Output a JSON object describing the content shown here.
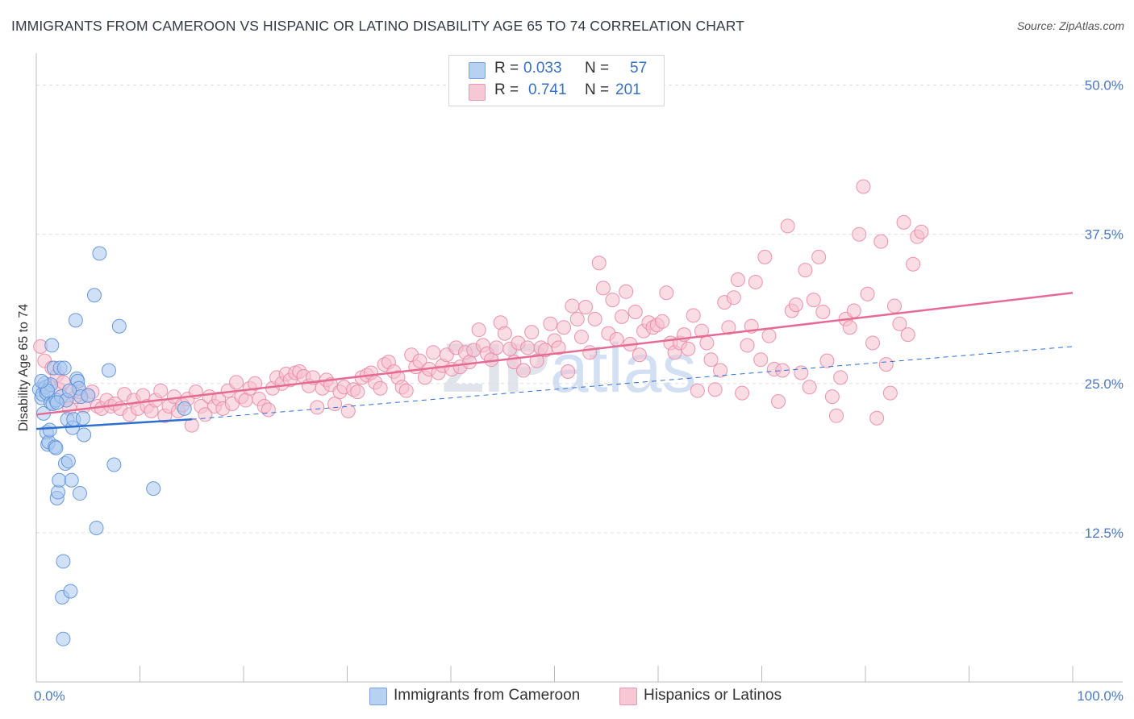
{
  "title": "IMMIGRANTS FROM CAMEROON VS HISPANIC OR LATINO DISABILITY AGE 65 TO 74 CORRELATION CHART",
  "source": "Source: ZipAtlas.com",
  "watermark": {
    "zip": "ZIP",
    "atlas": "atlas"
  },
  "legend": {
    "series1": {
      "r_label": "R =",
      "r_value": "0.033",
      "n_label": "N =",
      "n_value": "57"
    },
    "series2": {
      "r_label": "R =",
      "r_value": "0.741",
      "n_label": "N =",
      "n_value": "201"
    }
  },
  "bottom_legend": {
    "series1": "Immigrants from Cameroon",
    "series2": "Hispanics or Latinos"
  },
  "colors": {
    "series1_fill": "#a9c8f0",
    "series1_stroke": "#5b8fd6",
    "series1_line": "#2f6fd0",
    "series2_fill": "#f6c0d0",
    "series2_stroke": "#e88aa6",
    "series2_line": "#e56b93",
    "tick_label": "#4a78c4",
    "grid": "#dddddd"
  },
  "chart_data": {
    "type": "scatter",
    "title": "IMMIGRANTS FROM CAMEROON VS HISPANIC OR LATINO DISABILITY AGE 65 TO 74 CORRELATION CHART",
    "xlabel": "",
    "ylabel": "Disability Age 65 to 74",
    "xlim": [
      0,
      100
    ],
    "ylim": [
      0,
      52
    ],
    "x_tick_labels": [
      "0.0%",
      "100.0%"
    ],
    "y_ticks": [
      12.5,
      25.0,
      37.5,
      50.0
    ],
    "y_tick_labels": [
      "12.5%",
      "25.0%",
      "37.5%",
      "50.0%"
    ],
    "grid": true,
    "series": [
      {
        "name": "Immigrants from Cameroon",
        "R": 0.033,
        "N": 57,
        "trend_solid": {
          "x": [
            0,
            15
          ],
          "y": [
            21.2,
            22.0
          ]
        },
        "trend_dashed": {
          "x": [
            15,
            100
          ],
          "y": [
            22.0,
            28.1
          ]
        },
        "points": [
          [
            0.3,
            24.5
          ],
          [
            0.5,
            23.8
          ],
          [
            0.6,
            24.1
          ],
          [
            0.7,
            22.5
          ],
          [
            0.8,
            25.0
          ],
          [
            0.9,
            24.7
          ],
          [
            1.0,
            20.9
          ],
          [
            1.0,
            24.2
          ],
          [
            1.1,
            19.9
          ],
          [
            1.2,
            20.1
          ],
          [
            1.3,
            21.1
          ],
          [
            1.4,
            23.4
          ],
          [
            1.4,
            24.9
          ],
          [
            1.5,
            28.2
          ],
          [
            1.6,
            23.3
          ],
          [
            1.7,
            26.3
          ],
          [
            1.8,
            19.7
          ],
          [
            1.9,
            19.6
          ],
          [
            1.9,
            23.6
          ],
          [
            2.0,
            15.4
          ],
          [
            2.1,
            15.9
          ],
          [
            2.2,
            16.9
          ],
          [
            2.3,
            26.3
          ],
          [
            2.4,
            23.9
          ],
          [
            2.5,
            7.1
          ],
          [
            2.6,
            3.6
          ],
          [
            2.6,
            10.1
          ],
          [
            2.7,
            26.3
          ],
          [
            2.8,
            18.3
          ],
          [
            2.9,
            23.6
          ],
          [
            3.0,
            22.0
          ],
          [
            3.1,
            18.5
          ],
          [
            3.3,
            7.6
          ],
          [
            3.4,
            16.9
          ],
          [
            3.5,
            21.3
          ],
          [
            3.6,
            22.0
          ],
          [
            3.8,
            30.3
          ],
          [
            3.9,
            25.4
          ],
          [
            4.0,
            25.2
          ],
          [
            4.1,
            24.6
          ],
          [
            4.2,
            15.8
          ],
          [
            4.3,
            23.9
          ],
          [
            4.5,
            22.1
          ],
          [
            4.6,
            20.7
          ],
          [
            5.0,
            24.0
          ],
          [
            5.6,
            32.4
          ],
          [
            5.8,
            12.9
          ],
          [
            6.1,
            35.9
          ],
          [
            7.0,
            26.1
          ],
          [
            7.5,
            18.2
          ],
          [
            8.0,
            29.8
          ],
          [
            11.3,
            16.2
          ],
          [
            14.3,
            22.9
          ],
          [
            2.0,
            23.4
          ],
          [
            1.1,
            24.4
          ],
          [
            0.5,
            25.2
          ],
          [
            3.2,
            24.4
          ]
        ]
      },
      {
        "name": "Hispanics or Latinos",
        "R": 0.741,
        "N": 201,
        "trend": {
          "x": [
            0,
            100
          ],
          "y": [
            22.4,
            32.6
          ]
        },
        "points": [
          [
            0.4,
            28.1
          ],
          [
            0.8,
            26.9
          ],
          [
            1.2,
            24.8
          ],
          [
            1.5,
            26.3
          ],
          [
            2.0,
            25.7
          ],
          [
            2.2,
            24.5
          ],
          [
            2.6,
            25.1
          ],
          [
            2.9,
            23.6
          ],
          [
            3.2,
            22.9
          ],
          [
            3.5,
            24.3
          ],
          [
            3.8,
            23.9
          ],
          [
            4.2,
            24.3
          ],
          [
            4.6,
            23.1
          ],
          [
            5.0,
            24.0
          ],
          [
            5.4,
            24.3
          ],
          [
            5.9,
            23.1
          ],
          [
            6.3,
            22.9
          ],
          [
            6.8,
            23.6
          ],
          [
            7.2,
            23.1
          ],
          [
            7.6,
            23.3
          ],
          [
            8.1,
            22.9
          ],
          [
            8.5,
            24.1
          ],
          [
            9.0,
            22.4
          ],
          [
            9.4,
            23.6
          ],
          [
            9.8,
            22.9
          ],
          [
            10.3,
            24.0
          ],
          [
            10.7,
            23.1
          ],
          [
            11.1,
            22.7
          ],
          [
            11.5,
            23.6
          ],
          [
            12.0,
            24.4
          ],
          [
            12.4,
            22.3
          ],
          [
            12.8,
            23.1
          ],
          [
            13.3,
            23.9
          ],
          [
            13.7,
            22.7
          ],
          [
            14.1,
            23.2
          ],
          [
            14.6,
            23.7
          ],
          [
            15.0,
            21.5
          ],
          [
            15.4,
            24.3
          ],
          [
            15.9,
            23.1
          ],
          [
            16.3,
            22.4
          ],
          [
            16.7,
            23.9
          ],
          [
            17.2,
            23.1
          ],
          [
            17.6,
            23.7
          ],
          [
            18.0,
            22.9
          ],
          [
            18.5,
            24.4
          ],
          [
            18.9,
            23.3
          ],
          [
            19.3,
            25.1
          ],
          [
            19.8,
            23.9
          ],
          [
            20.2,
            23.6
          ],
          [
            20.6,
            24.6
          ],
          [
            21.1,
            25.0
          ],
          [
            21.5,
            23.7
          ],
          [
            22.0,
            23.1
          ],
          [
            22.4,
            22.8
          ],
          [
            22.8,
            24.6
          ],
          [
            23.2,
            25.5
          ],
          [
            23.7,
            25.0
          ],
          [
            24.1,
            25.8
          ],
          [
            24.5,
            25.3
          ],
          [
            25.0,
            25.9
          ],
          [
            25.4,
            26.0
          ],
          [
            25.8,
            25.6
          ],
          [
            26.3,
            24.8
          ],
          [
            26.7,
            25.5
          ],
          [
            27.1,
            23.0
          ],
          [
            27.6,
            24.6
          ],
          [
            28.0,
            25.3
          ],
          [
            28.4,
            24.9
          ],
          [
            28.8,
            23.3
          ],
          [
            29.3,
            24.3
          ],
          [
            29.7,
            24.7
          ],
          [
            30.1,
            22.7
          ],
          [
            30.6,
            24.5
          ],
          [
            31.0,
            24.3
          ],
          [
            31.4,
            25.5
          ],
          [
            31.9,
            25.7
          ],
          [
            32.3,
            25.9
          ],
          [
            32.7,
            25.1
          ],
          [
            33.2,
            24.6
          ],
          [
            33.6,
            26.6
          ],
          [
            34.0,
            26.8
          ],
          [
            34.5,
            26.0
          ],
          [
            34.9,
            25.5
          ],
          [
            35.3,
            24.7
          ],
          [
            35.7,
            24.4
          ],
          [
            36.2,
            27.4
          ],
          [
            36.6,
            26.4
          ],
          [
            37.0,
            26.9
          ],
          [
            37.5,
            25.5
          ],
          [
            37.9,
            26.2
          ],
          [
            38.3,
            27.6
          ],
          [
            38.8,
            25.9
          ],
          [
            39.2,
            26.5
          ],
          [
            39.6,
            27.4
          ],
          [
            40.1,
            26.2
          ],
          [
            40.5,
            28.0
          ],
          [
            40.9,
            26.4
          ],
          [
            41.4,
            27.6
          ],
          [
            41.8,
            26.8
          ],
          [
            42.2,
            27.8
          ],
          [
            42.7,
            29.5
          ],
          [
            43.1,
            28.2
          ],
          [
            43.5,
            27.5
          ],
          [
            43.9,
            27.0
          ],
          [
            44.4,
            28.0
          ],
          [
            44.8,
            30.1
          ],
          [
            45.2,
            29.2
          ],
          [
            45.7,
            27.9
          ],
          [
            46.1,
            26.8
          ],
          [
            46.5,
            28.4
          ],
          [
            47.0,
            26.1
          ],
          [
            47.4,
            28.0
          ],
          [
            47.8,
            29.3
          ],
          [
            48.3,
            26.9
          ],
          [
            48.7,
            28.0
          ],
          [
            49.1,
            27.8
          ],
          [
            49.6,
            30.0
          ],
          [
            50.0,
            28.6
          ],
          [
            50.4,
            28.0
          ],
          [
            50.9,
            29.7
          ],
          [
            51.3,
            26.0
          ],
          [
            51.7,
            31.5
          ],
          [
            52.2,
            30.4
          ],
          [
            52.6,
            28.9
          ],
          [
            53.0,
            31.4
          ],
          [
            53.4,
            27.6
          ],
          [
            53.9,
            30.4
          ],
          [
            54.3,
            35.1
          ],
          [
            54.7,
            33.0
          ],
          [
            55.2,
            29.2
          ],
          [
            55.6,
            32.0
          ],
          [
            56.0,
            28.7
          ],
          [
            56.5,
            30.6
          ],
          [
            56.9,
            32.7
          ],
          [
            57.3,
            28.3
          ],
          [
            57.8,
            31.0
          ],
          [
            58.2,
            27.4
          ],
          [
            58.6,
            29.4
          ],
          [
            59.1,
            30.1
          ],
          [
            59.5,
            29.7
          ],
          [
            59.9,
            29.9
          ],
          [
            60.4,
            30.2
          ],
          [
            60.8,
            32.6
          ],
          [
            61.2,
            28.4
          ],
          [
            61.6,
            27.6
          ],
          [
            62.1,
            28.4
          ],
          [
            62.5,
            29.1
          ],
          [
            62.9,
            27.9
          ],
          [
            63.4,
            30.7
          ],
          [
            63.8,
            24.4
          ],
          [
            64.2,
            29.4
          ],
          [
            64.7,
            28.4
          ],
          [
            65.1,
            27.0
          ],
          [
            65.5,
            24.5
          ],
          [
            66.0,
            26.1
          ],
          [
            66.4,
            31.8
          ],
          [
            66.8,
            29.7
          ],
          [
            67.3,
            32.2
          ],
          [
            67.7,
            33.7
          ],
          [
            68.1,
            24.2
          ],
          [
            68.6,
            28.2
          ],
          [
            69.0,
            29.8
          ],
          [
            69.4,
            33.5
          ],
          [
            69.9,
            27.0
          ],
          [
            70.3,
            35.6
          ],
          [
            70.7,
            29.0
          ],
          [
            71.2,
            26.2
          ],
          [
            71.6,
            23.5
          ],
          [
            72.0,
            26.1
          ],
          [
            72.5,
            38.2
          ],
          [
            72.9,
            31.1
          ],
          [
            73.3,
            31.6
          ],
          [
            73.8,
            25.9
          ],
          [
            74.2,
            34.5
          ],
          [
            74.6,
            24.7
          ],
          [
            75.0,
            32.0
          ],
          [
            75.5,
            35.6
          ],
          [
            75.9,
            31.0
          ],
          [
            76.3,
            26.9
          ],
          [
            76.8,
            23.9
          ],
          [
            77.2,
            22.3
          ],
          [
            77.6,
            25.5
          ],
          [
            78.1,
            30.4
          ],
          [
            78.5,
            29.7
          ],
          [
            78.9,
            31.1
          ],
          [
            79.4,
            37.5
          ],
          [
            79.8,
            41.5
          ],
          [
            80.2,
            32.5
          ],
          [
            80.7,
            28.4
          ],
          [
            81.1,
            22.1
          ],
          [
            81.5,
            36.9
          ],
          [
            82.0,
            26.6
          ],
          [
            82.4,
            24.2
          ],
          [
            82.8,
            31.5
          ],
          [
            83.3,
            30.0
          ],
          [
            83.7,
            38.5
          ],
          [
            84.1,
            29.1
          ],
          [
            84.6,
            35.0
          ],
          [
            85.0,
            37.3
          ],
          [
            85.4,
            37.7
          ]
        ]
      }
    ]
  }
}
